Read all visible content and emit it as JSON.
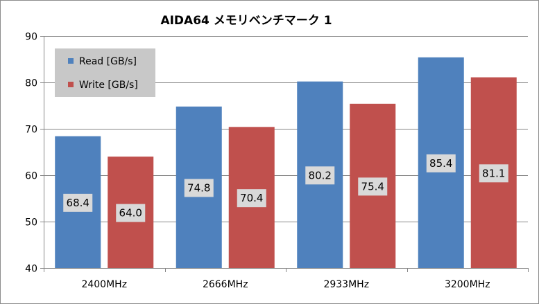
{
  "chart_data": {
    "type": "bar",
    "title": "AIDA64 メモリベンチマーク 1",
    "xlabel": "",
    "ylabel": "",
    "categories": [
      "2400MHz",
      "2666MHz",
      "2933MHz",
      "3200MHz"
    ],
    "series": [
      {
        "name": "Read [GB/s]",
        "values": [
          68.4,
          74.8,
          80.2,
          85.4
        ],
        "color": "#4f81bd"
      },
      {
        "name": "Write [GB/s]",
        "values": [
          64.0,
          70.4,
          75.4,
          81.1
        ],
        "color": "#c0504d"
      }
    ],
    "ylim": [
      40,
      90
    ],
    "yticks": [
      40,
      50,
      60,
      70,
      80,
      90
    ],
    "grid": true,
    "legend": "top-left",
    "data_labels": true
  }
}
